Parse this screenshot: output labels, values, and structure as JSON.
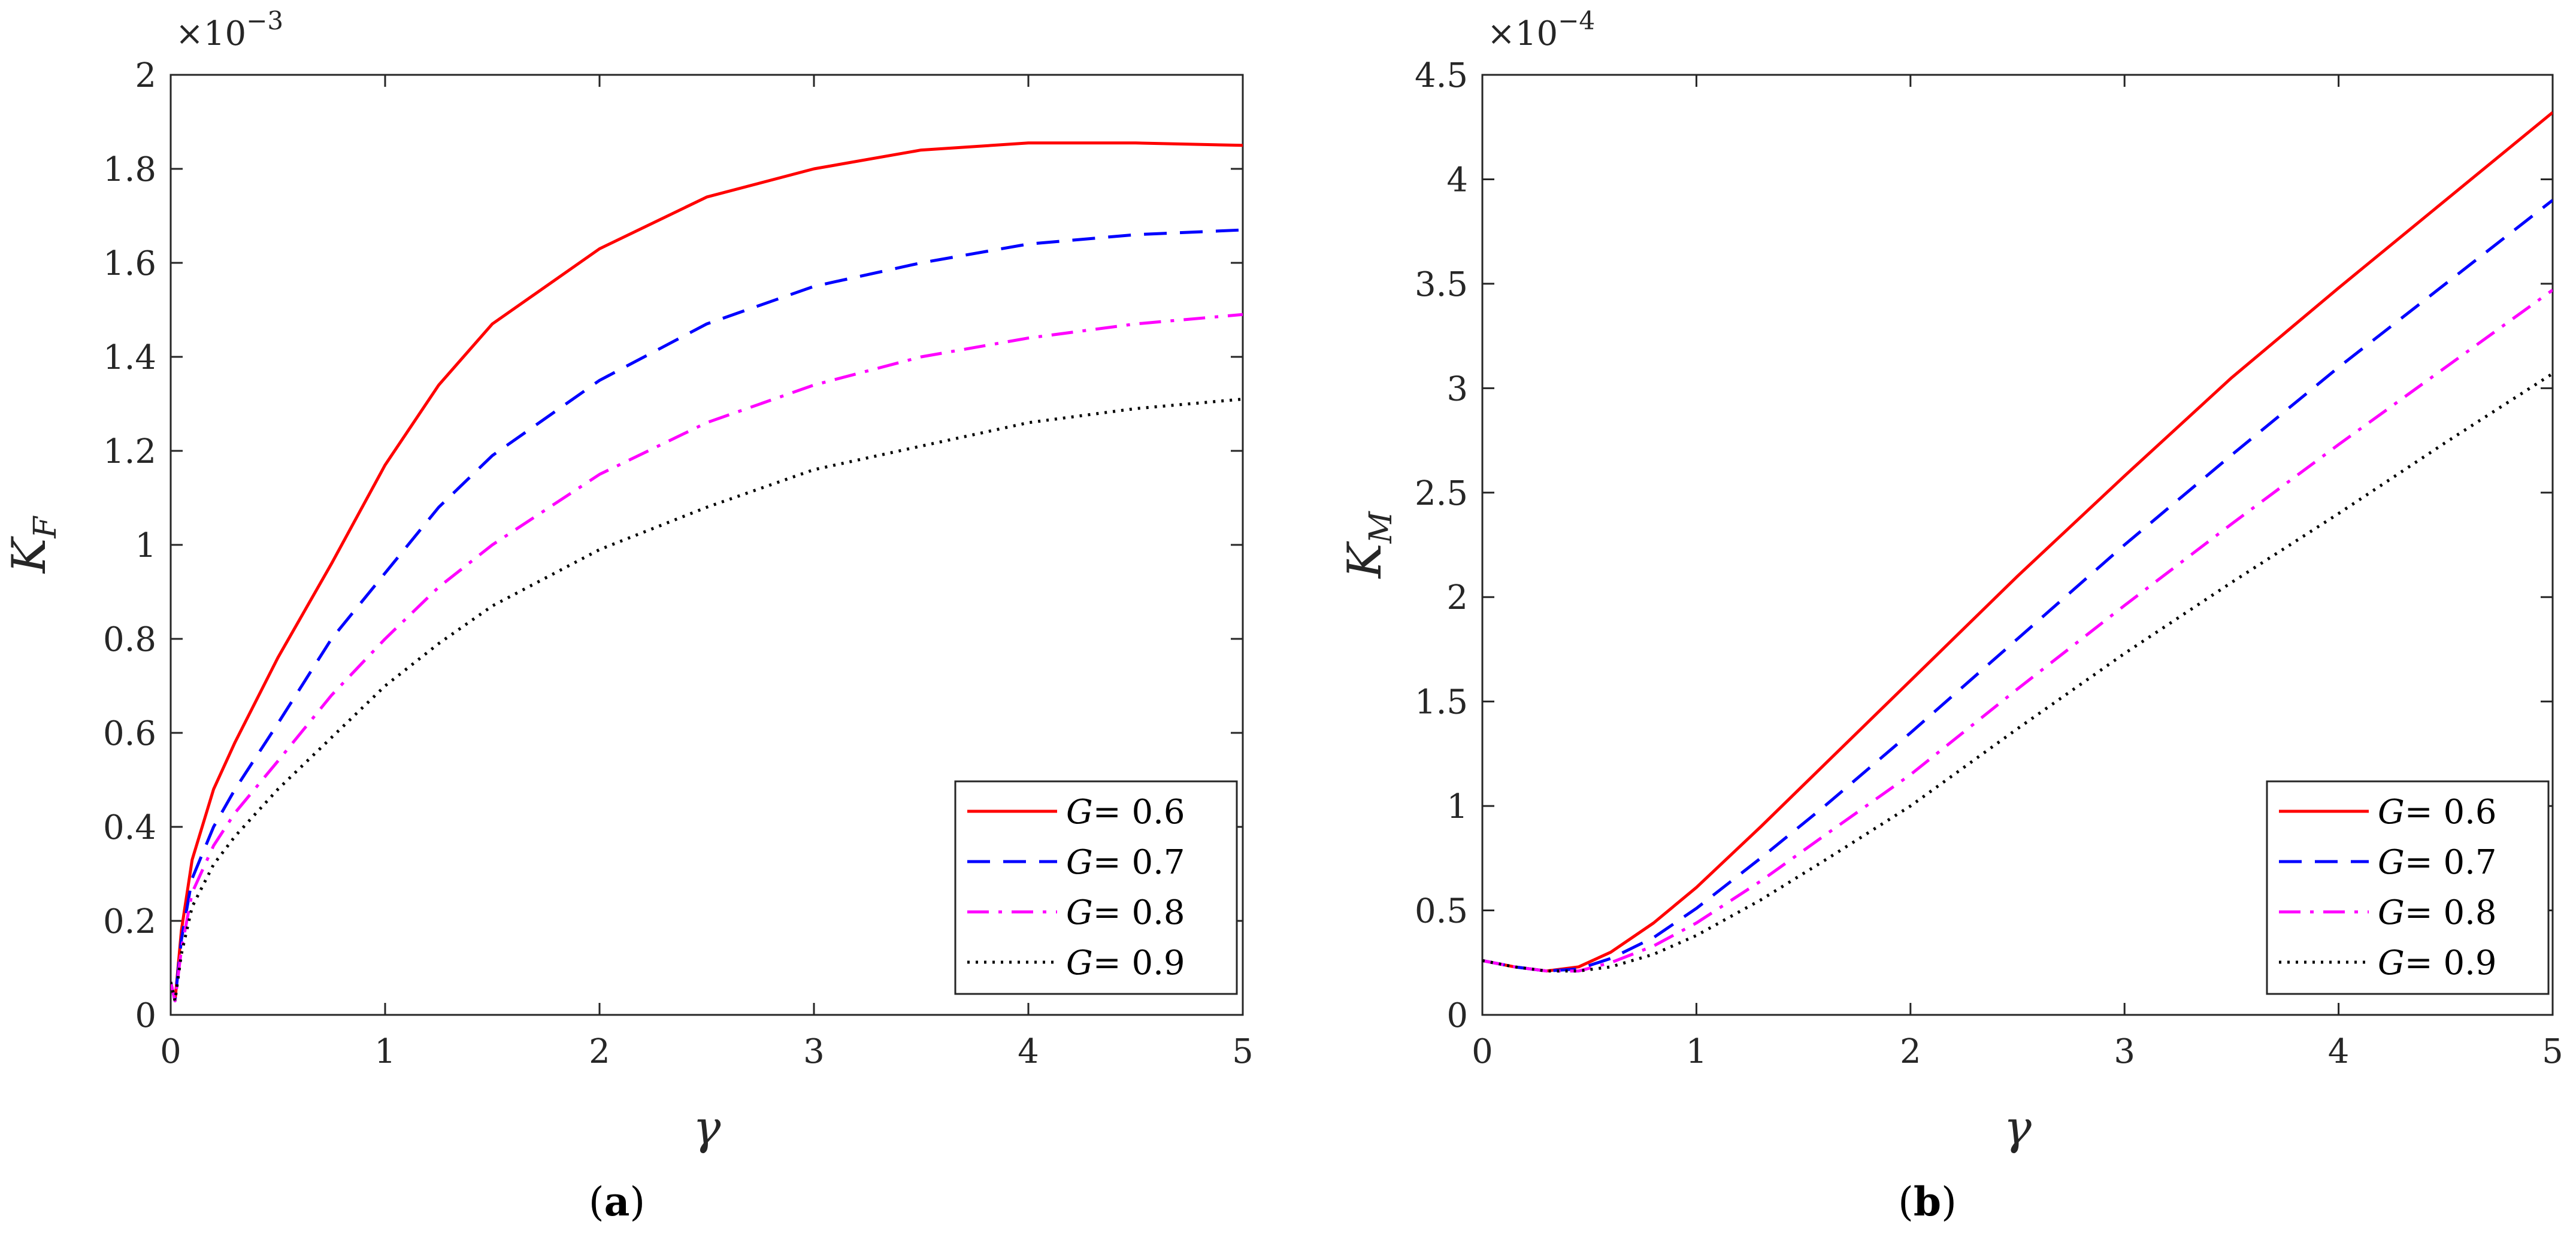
{
  "chart_data": [
    {
      "type": "line",
      "panel": "a",
      "caption_letter": "a",
      "xlabel": "γ",
      "ylabel_main": "K",
      "ylabel_sub": "F",
      "y_exponent_prefix": "×10",
      "y_exponent_power": "−3",
      "xlim": [
        0,
        5
      ],
      "ylim": [
        0,
        2
      ],
      "xticks": [
        0,
        1,
        2,
        3,
        4,
        5
      ],
      "xtick_labels": [
        "0",
        "1",
        "2",
        "3",
        "4",
        "5"
      ],
      "yticks": [
        0,
        0.2,
        0.4,
        0.6,
        0.8,
        1.0,
        1.2,
        1.4,
        1.6,
        1.8,
        2.0
      ],
      "ytick_labels": [
        "0",
        "0.2",
        "0.4",
        "0.6",
        "0.8",
        "1",
        "1.2",
        "1.4",
        "1.6",
        "1.8",
        "2"
      ],
      "legend_position": "bottom-right",
      "series": [
        {
          "name": "G = 0.6",
          "legend_var": "G",
          "legend_value": "= 0.6",
          "color": "#ff0000",
          "style": "solid",
          "x": [
            0,
            0.02,
            0.05,
            0.1,
            0.2,
            0.3,
            0.5,
            0.75,
            1.0,
            1.25,
            1.5,
            2.0,
            2.5,
            3.0,
            3.5,
            4.0,
            4.5,
            5.0
          ],
          "y": [
            0.07,
            0.03,
            0.18,
            0.33,
            0.48,
            0.58,
            0.76,
            0.96,
            1.17,
            1.34,
            1.47,
            1.63,
            1.74,
            1.8,
            1.84,
            1.855,
            1.855,
            1.85
          ]
        },
        {
          "name": "G = 0.7",
          "legend_var": "G",
          "legend_value": "= 0.7",
          "color": "#0000ff",
          "style": "dashed",
          "x": [
            0,
            0.02,
            0.05,
            0.1,
            0.2,
            0.3,
            0.5,
            0.75,
            1.0,
            1.25,
            1.5,
            2.0,
            2.5,
            3.0,
            3.5,
            4.0,
            4.5,
            5.0
          ],
          "y": [
            0.07,
            0.03,
            0.16,
            0.29,
            0.4,
            0.48,
            0.62,
            0.8,
            0.94,
            1.08,
            1.19,
            1.35,
            1.47,
            1.55,
            1.6,
            1.64,
            1.66,
            1.67
          ]
        },
        {
          "name": "G = 0.8",
          "legend_var": "G",
          "legend_value": "= 0.8",
          "color": "#ff00ff",
          "style": "dashdot",
          "x": [
            0,
            0.02,
            0.05,
            0.1,
            0.2,
            0.3,
            0.5,
            0.75,
            1.0,
            1.25,
            1.5,
            2.0,
            2.5,
            3.0,
            3.5,
            4.0,
            4.5,
            5.0
          ],
          "y": [
            0.07,
            0.03,
            0.14,
            0.26,
            0.36,
            0.43,
            0.54,
            0.68,
            0.8,
            0.91,
            1.0,
            1.15,
            1.26,
            1.34,
            1.4,
            1.44,
            1.47,
            1.49
          ]
        },
        {
          "name": "G = 0.9",
          "legend_var": "G",
          "legend_value": "= 0.9",
          "color": "#000000",
          "style": "dotted",
          "x": [
            0,
            0.02,
            0.05,
            0.1,
            0.2,
            0.3,
            0.5,
            0.75,
            1.0,
            1.25,
            1.5,
            2.0,
            2.5,
            3.0,
            3.5,
            4.0,
            4.5,
            5.0
          ],
          "y": [
            0.07,
            0.03,
            0.13,
            0.23,
            0.32,
            0.38,
            0.48,
            0.59,
            0.7,
            0.79,
            0.87,
            0.99,
            1.08,
            1.16,
            1.21,
            1.26,
            1.29,
            1.31
          ]
        }
      ]
    },
    {
      "type": "line",
      "panel": "b",
      "caption_letter": "b",
      "xlabel": "γ",
      "ylabel_main": "K",
      "ylabel_sub": "M",
      "y_exponent_prefix": "×10",
      "y_exponent_power": "−4",
      "xlim": [
        0,
        5
      ],
      "ylim": [
        0,
        4.5
      ],
      "xticks": [
        0,
        1,
        2,
        3,
        4,
        5
      ],
      "xtick_labels": [
        "0",
        "1",
        "2",
        "3",
        "4",
        "5"
      ],
      "yticks": [
        0,
        0.5,
        1.0,
        1.5,
        2.0,
        2.5,
        3.0,
        3.5,
        4.0,
        4.5
      ],
      "ytick_labels": [
        "0",
        "0.5",
        "1",
        "1.5",
        "2",
        "2.5",
        "3",
        "3.5",
        "4",
        "4.5"
      ],
      "legend_position": "bottom-right",
      "series": [
        {
          "name": "G = 0.6",
          "legend_var": "G",
          "legend_value": "= 0.6",
          "color": "#ff0000",
          "style": "solid",
          "x": [
            0,
            0.15,
            0.3,
            0.45,
            0.6,
            0.8,
            1.0,
            1.3,
            1.6,
            2.0,
            2.5,
            3.0,
            3.5,
            4.0,
            4.5,
            5.0
          ],
          "y": [
            0.26,
            0.23,
            0.21,
            0.23,
            0.3,
            0.44,
            0.61,
            0.9,
            1.2,
            1.6,
            2.1,
            2.58,
            3.05,
            3.48,
            3.9,
            4.32
          ]
        },
        {
          "name": "G = 0.7",
          "legend_var": "G",
          "legend_value": "= 0.7",
          "color": "#0000ff",
          "style": "dashed",
          "x": [
            0,
            0.15,
            0.3,
            0.45,
            0.6,
            0.8,
            1.0,
            1.3,
            1.6,
            2.0,
            2.5,
            3.0,
            3.5,
            4.0,
            4.5,
            5.0
          ],
          "y": [
            0.26,
            0.23,
            0.21,
            0.22,
            0.27,
            0.37,
            0.51,
            0.75,
            1.0,
            1.35,
            1.8,
            2.25,
            2.68,
            3.1,
            3.5,
            3.9
          ]
        },
        {
          "name": "G = 0.8",
          "legend_var": "G",
          "legend_value": "= 0.8",
          "color": "#ff00ff",
          "style": "dashdot",
          "x": [
            0,
            0.15,
            0.3,
            0.45,
            0.6,
            0.8,
            1.0,
            1.3,
            1.6,
            2.0,
            2.5,
            3.0,
            3.5,
            4.0,
            4.5,
            5.0
          ],
          "y": [
            0.26,
            0.23,
            0.21,
            0.21,
            0.25,
            0.33,
            0.44,
            0.64,
            0.86,
            1.15,
            1.56,
            1.96,
            2.35,
            2.73,
            3.1,
            3.47
          ]
        },
        {
          "name": "G = 0.9",
          "legend_var": "G",
          "legend_value": "= 0.9",
          "color": "#000000",
          "style": "dotted",
          "x": [
            0,
            0.15,
            0.3,
            0.45,
            0.6,
            0.8,
            1.0,
            1.3,
            1.6,
            2.0,
            2.5,
            3.0,
            3.5,
            4.0,
            4.5,
            5.0
          ],
          "y": [
            0.26,
            0.23,
            0.21,
            0.21,
            0.23,
            0.29,
            0.38,
            0.55,
            0.74,
            1.0,
            1.37,
            1.73,
            2.07,
            2.4,
            2.74,
            3.07
          ]
        }
      ]
    }
  ]
}
